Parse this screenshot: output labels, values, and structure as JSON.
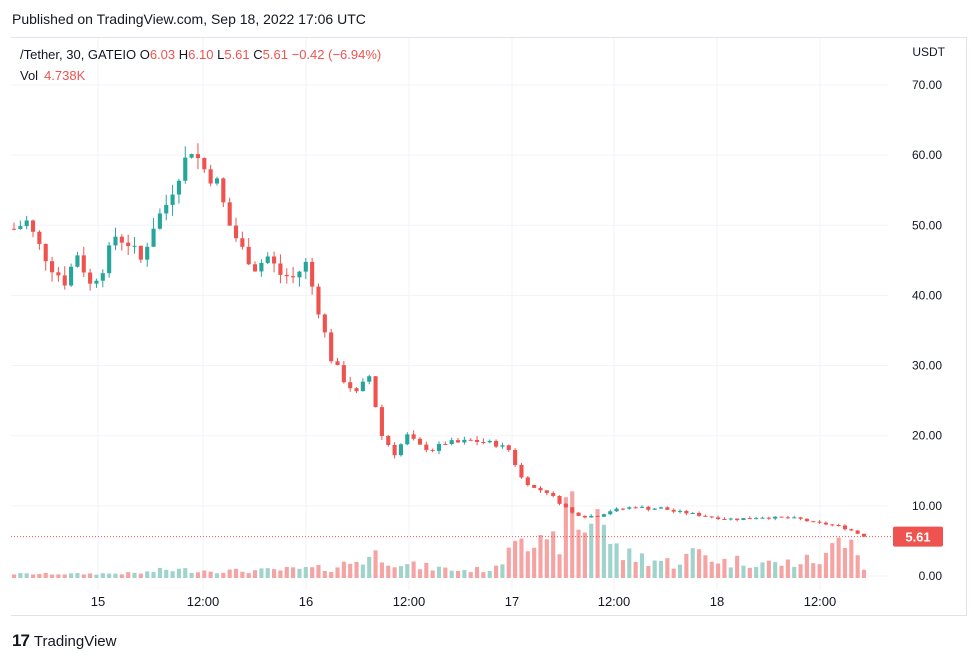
{
  "header": {
    "published": "Published on TradingView.com, Sep 18, 2022 17:06 UTC"
  },
  "legend": {
    "symbol": "/Tether, 30, GATEIO",
    "o_label": "O",
    "o_value": "6.03",
    "h_label": "H",
    "h_value": "6.10",
    "l_label": "L",
    "l_value": "5.61",
    "c_label": "C",
    "c_value": "5.61",
    "change": "−0.42 (−6.94%)",
    "vol_label": "Vol",
    "vol_value": "4.738K"
  },
  "axis": {
    "currency": "USDT",
    "price_badge": "5.61"
  },
  "footer": {
    "brand": "TradingView",
    "logo_glyph": "17"
  },
  "colors": {
    "up": "#26a69a",
    "down": "#ef5350",
    "vol_up": "#9fd3cc",
    "vol_down": "#f5a3a3",
    "grid": "#f0f3fa"
  },
  "chart_data": {
    "type": "candlestick",
    "ylim": [
      0,
      72
    ],
    "yticks": [
      0,
      10,
      20,
      30,
      40,
      50,
      60,
      70
    ],
    "ytick_labels": [
      "0.00",
      "10.00",
      "20.00",
      "30.00",
      "40.00",
      "50.00",
      "60.00",
      "70.00"
    ],
    "xticks": [
      "15",
      "12:00",
      "16",
      "12:00",
      "17",
      "12:00",
      "18",
      "12:00"
    ],
    "last_price": 5.61,
    "price_path": [
      [
        0,
        49.5
      ],
      [
        2,
        50.5
      ],
      [
        4,
        47.0
      ],
      [
        6,
        44.0
      ],
      [
        8,
        42.0
      ],
      [
        10,
        46.0
      ],
      [
        12,
        41.5
      ],
      [
        14,
        44.0
      ],
      [
        16,
        48.5
      ],
      [
        18,
        47.5
      ],
      [
        20,
        45.0
      ],
      [
        22,
        50.0
      ],
      [
        24,
        53.0
      ],
      [
        26,
        57.5
      ],
      [
        28,
        61.0
      ],
      [
        30,
        58.0
      ],
      [
        32,
        56.0
      ],
      [
        34,
        50.0
      ],
      [
        36,
        46.5
      ],
      [
        38,
        44.0
      ],
      [
        40,
        45.5
      ],
      [
        42,
        43.0
      ],
      [
        44,
        42.5
      ],
      [
        46,
        44.5
      ],
      [
        48,
        38.0
      ],
      [
        50,
        31.0
      ],
      [
        52,
        28.0
      ],
      [
        54,
        26.0
      ],
      [
        56,
        28.5
      ],
      [
        58,
        20.0
      ],
      [
        60,
        17.5
      ],
      [
        62,
        20.0
      ],
      [
        64,
        18.5
      ],
      [
        66,
        18.0
      ],
      [
        68,
        19.0
      ],
      [
        70,
        19.0
      ],
      [
        72,
        19.3
      ],
      [
        74,
        19.1
      ],
      [
        76,
        18.8
      ],
      [
        78,
        18.0
      ],
      [
        80,
        14.0
      ],
      [
        82,
        12.5
      ],
      [
        84,
        12.0
      ],
      [
        86,
        10.5
      ],
      [
        88,
        9.0
      ],
      [
        90,
        8.5
      ],
      [
        92,
        8.6
      ],
      [
        94,
        9.3
      ],
      [
        96,
        9.6
      ],
      [
        98,
        9.9
      ],
      [
        100,
        9.6
      ],
      [
        102,
        9.7
      ],
      [
        104,
        9.2
      ],
      [
        106,
        9.0
      ],
      [
        108,
        8.7
      ],
      [
        110,
        8.4
      ],
      [
        112,
        8.2
      ],
      [
        114,
        8.1
      ],
      [
        116,
        8.3
      ],
      [
        118,
        8.4
      ],
      [
        120,
        8.3
      ],
      [
        122,
        8.3
      ],
      [
        124,
        8.1
      ],
      [
        126,
        7.6
      ],
      [
        128,
        7.4
      ],
      [
        130,
        7.1
      ],
      [
        132,
        6.5
      ],
      [
        134,
        5.61
      ]
    ],
    "volume_path": [
      [
        0,
        0.3
      ],
      [
        10,
        0.3
      ],
      [
        20,
        0.4
      ],
      [
        24,
        0.9
      ],
      [
        30,
        0.8
      ],
      [
        36,
        0.7
      ],
      [
        40,
        0.8
      ],
      [
        46,
        1.0
      ],
      [
        50,
        1.1
      ],
      [
        54,
        2.2
      ],
      [
        58,
        3.2
      ],
      [
        62,
        1.5
      ],
      [
        66,
        1.2
      ],
      [
        70,
        0.8
      ],
      [
        76,
        1.0
      ],
      [
        80,
        9.0
      ],
      [
        82,
        5.0
      ],
      [
        84,
        3.5
      ],
      [
        86,
        5.5
      ],
      [
        88,
        10.0
      ],
      [
        90,
        6.0
      ],
      [
        92,
        11.5
      ],
      [
        94,
        4.5
      ],
      [
        96,
        3.0
      ],
      [
        100,
        2.5
      ],
      [
        104,
        1.8
      ],
      [
        108,
        3.5
      ],
      [
        112,
        2.0
      ],
      [
        116,
        2.2
      ],
      [
        120,
        1.7
      ],
      [
        124,
        2.0
      ],
      [
        128,
        2.5
      ],
      [
        130,
        5.0
      ],
      [
        132,
        8.0
      ],
      [
        134,
        0.9
      ]
    ],
    "candle_count": 135
  }
}
